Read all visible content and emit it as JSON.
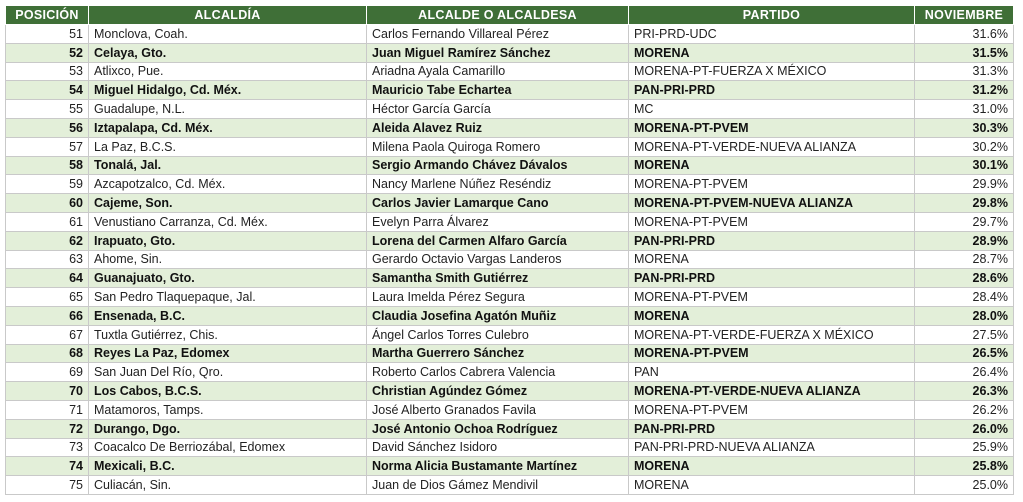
{
  "table": {
    "header": [
      "POSICIÓN",
      "ALCALDÍA",
      "ALCALDE O ALCALDESA",
      "PARTIDO",
      "NOVIEMBRE"
    ],
    "rows": [
      [
        "51",
        "Monclova, Coah.",
        "Carlos Fernando Villareal Pérez",
        "PRI-PRD-UDC",
        "31.6%"
      ],
      [
        "52",
        "Celaya, Gto.",
        "Juan Miguel Ramírez Sánchez",
        "MORENA",
        "31.5%"
      ],
      [
        "53",
        "Atlixco, Pue.",
        "Ariadna Ayala Camarillo",
        "MORENA-PT-FUERZA X MÉXICO",
        "31.3%"
      ],
      [
        "54",
        "Miguel Hidalgo, Cd. Méx.",
        "Mauricio Tabe Echartea",
        "PAN-PRI-PRD",
        "31.2%"
      ],
      [
        "55",
        "Guadalupe, N.L.",
        "Héctor García García",
        "MC",
        "31.0%"
      ],
      [
        "56",
        "Iztapalapa, Cd. Méx.",
        "Aleida Alavez Ruiz",
        "MORENA-PT-PVEM",
        "30.3%"
      ],
      [
        "57",
        "La Paz, B.C.S.",
        "Milena Paola Quiroga Romero",
        "MORENA-PT-VERDE-NUEVA ALIANZA",
        "30.2%"
      ],
      [
        "58",
        "Tonalá, Jal.",
        "Sergio Armando Chávez Dávalos",
        "MORENA",
        "30.1%"
      ],
      [
        "59",
        "Azcapotzalco, Cd. Méx.",
        "Nancy Marlene Núñez Reséndiz",
        "MORENA-PT-PVEM",
        "29.9%"
      ],
      [
        "60",
        "Cajeme, Son.",
        "Carlos Javier Lamarque Cano",
        "MORENA-PT-PVEM-NUEVA ALIANZA",
        "29.8%"
      ],
      [
        "61",
        "Venustiano Carranza, Cd. Méx.",
        "Evelyn Parra Álvarez",
        "MORENA-PT-PVEM",
        "29.7%"
      ],
      [
        "62",
        "Irapuato, Gto.",
        "Lorena del Carmen Alfaro García",
        "PAN-PRI-PRD",
        "28.9%"
      ],
      [
        "63",
        "Ahome, Sin.",
        "Gerardo Octavio Vargas Landeros",
        "MORENA",
        "28.7%"
      ],
      [
        "64",
        "Guanajuato, Gto.",
        "Samantha Smith Gutiérrez",
        "PAN-PRI-PRD",
        "28.6%"
      ],
      [
        "65",
        "San Pedro Tlaquepaque, Jal.",
        "Laura Imelda Pérez Segura",
        "MORENA-PT-PVEM",
        "28.4%"
      ],
      [
        "66",
        "Ensenada, B.C.",
        "Claudia Josefina Agatón Muñiz",
        "MORENA",
        "28.0%"
      ],
      [
        "67",
        "Tuxtla Gutiérrez, Chis.",
        "Ángel Carlos Torres Culebro",
        "MORENA-PT-VERDE-FUERZA X MÉXICO",
        "27.5%"
      ],
      [
        "68",
        "Reyes La Paz, Edomex",
        "Martha Guerrero Sánchez",
        "MORENA-PT-PVEM",
        "26.5%"
      ],
      [
        "69",
        "San Juan Del Río, Qro.",
        "Roberto Carlos Cabrera Valencia",
        "PAN",
        "26.4%"
      ],
      [
        "70",
        "Los Cabos, B.C.S.",
        "Christian Agúndez Gómez",
        "MORENA-PT-VERDE-NUEVA ALIANZA",
        "26.3%"
      ],
      [
        "71",
        "Matamoros, Tamps.",
        "José Alberto Granados Favila",
        "MORENA-PT-PVEM",
        "26.2%"
      ],
      [
        "72",
        "Durango, Dgo.",
        "José Antonio Ochoa Rodríguez",
        "PAN-PRI-PRD",
        "26.0%"
      ],
      [
        "73",
        "Coacalco De Berriozábal, Edomex",
        "David Sánchez Isidoro",
        "PAN-PRI-PRD-NUEVA ALIANZA",
        "25.9%"
      ],
      [
        "74",
        "Mexicali, B.C.",
        "Norma Alicia Bustamante Martínez",
        "MORENA",
        "25.8%"
      ],
      [
        "75",
        "Culiacán, Sin.",
        "Juan de Dios Gámez Mendivil",
        "MORENA",
        "25.0%"
      ]
    ]
  }
}
